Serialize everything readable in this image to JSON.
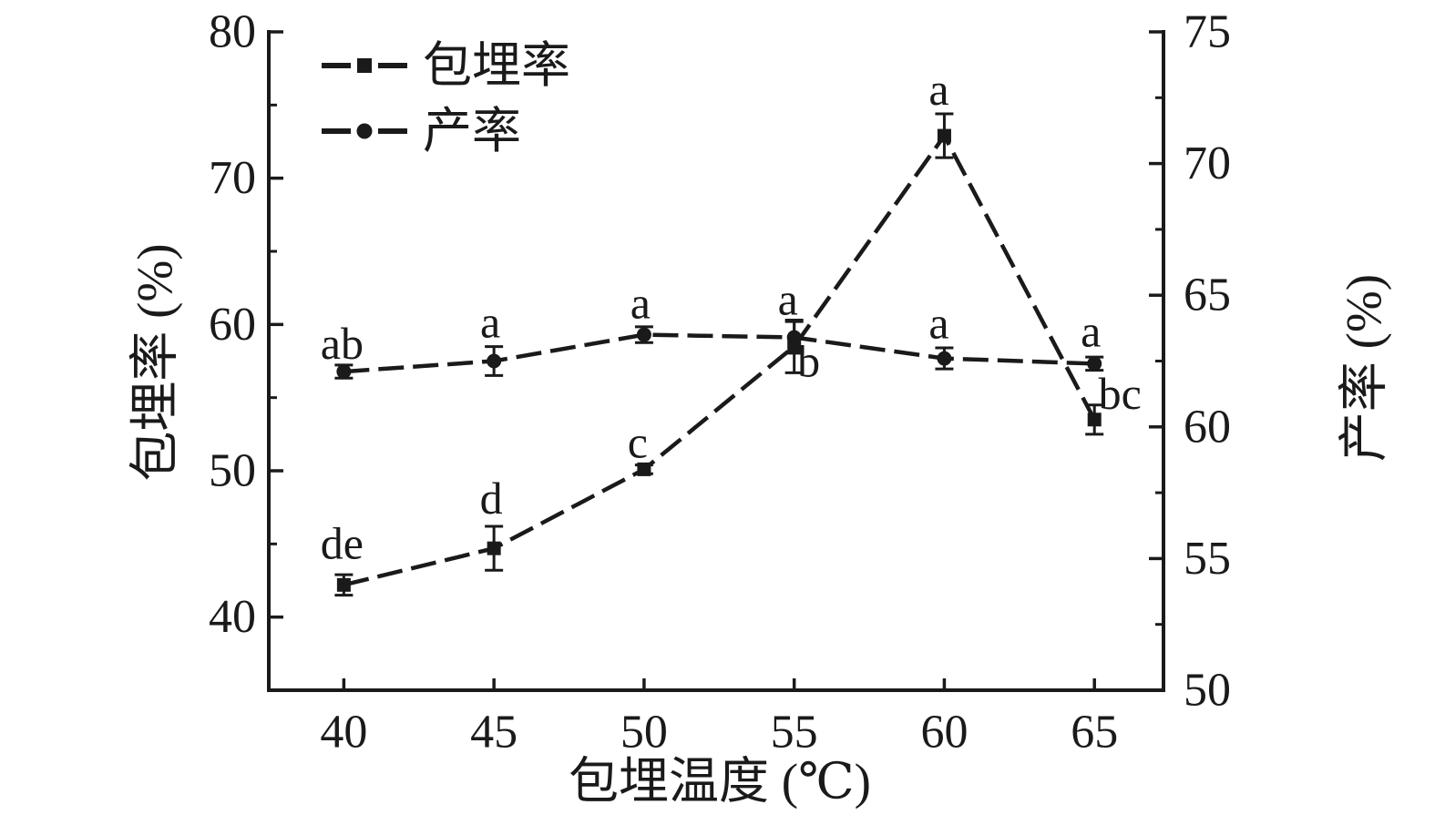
{
  "chart_data": {
    "type": "line",
    "title": "",
    "xlabel": "包埋温度 (℃)",
    "ylabel_left": "包埋率 (%)",
    "ylabel_right": "产率 (%)",
    "color": "#1a1a1a",
    "background": "#ffffff",
    "grid": false,
    "legend_position": "upper-left-inside",
    "xlim": [
      37.5,
      67.3
    ],
    "x_ticks": [
      40,
      45,
      50,
      55,
      60,
      65
    ],
    "ylim_left": [
      35,
      80
    ],
    "y_ticks_left": [
      40,
      50,
      60,
      70,
      80
    ],
    "y_minor_ticks_left": [
      45,
      55,
      65,
      75
    ],
    "ylim_right": [
      50,
      75
    ],
    "y_ticks_right": [
      50,
      55,
      60,
      65,
      70,
      75
    ],
    "y_minor_ticks_right": [
      52.5,
      57.5,
      62.5,
      67.5,
      72.5
    ],
    "series": [
      {
        "name": "包埋率",
        "axis": "left",
        "marker": "square",
        "line_style": "dashed",
        "x": [
          40,
          45,
          50,
          55,
          60,
          65
        ],
        "values": [
          42.2,
          44.7,
          50.1,
          58.5,
          72.9,
          53.5
        ],
        "errors": [
          0.7,
          1.5,
          0.3,
          1.8,
          1.5,
          1.0
        ],
        "point_labels": [
          "de",
          "d",
          "c",
          "b",
          "a",
          "bc"
        ],
        "label_offsets": [
          [
            -2,
            -46
          ],
          [
            -3,
            -55
          ],
          [
            -7,
            -30
          ],
          [
            16,
            16
          ],
          [
            -6,
            -51
          ],
          [
            28,
            -29
          ]
        ]
      },
      {
        "name": "产率",
        "axis": "right",
        "marker": "circle",
        "line_style": "dashed",
        "x": [
          40,
          45,
          50,
          55,
          60,
          65
        ],
        "values": [
          62.1,
          62.5,
          63.5,
          63.4,
          62.6,
          62.4
        ],
        "errors": [
          0.25,
          0.55,
          0.3,
          0.6,
          0.4,
          0.25
        ],
        "point_labels": [
          "ab",
          "a",
          "a",
          "a",
          "a",
          "a"
        ],
        "label_offsets": [
          [
            -2,
            -31
          ],
          [
            -4,
            -43
          ],
          [
            -4,
            -35
          ],
          [
            -7,
            -42
          ],
          [
            -6,
            -39
          ],
          [
            -4,
            -36
          ]
        ]
      }
    ]
  }
}
